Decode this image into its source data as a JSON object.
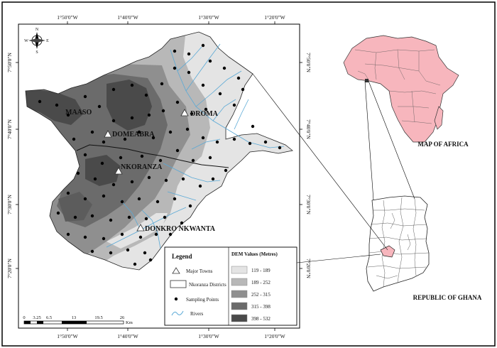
{
  "towns": {
    "maaso": "MAASO",
    "droma": "DROMA",
    "domeabra": "DOMEABRA",
    "nkoranza": "NKORANZA",
    "donkro": "DONKRO NKWANTA"
  },
  "top_ticks": [
    "1°50'0\"W",
    "1°40'0\"W",
    "1°30'0\"W",
    "1°20'0\"W"
  ],
  "bottom_ticks": [
    "1°50'0\"W",
    "1°40'0\"W",
    "1°30'0\"W",
    "1°20'0\"W"
  ],
  "left_ticks": [
    "7°50'0\"N",
    "7°40'0\"N",
    "7°30'0\"N",
    "7°20'0\"N"
  ],
  "right_ticks": [
    "7°50'0\"N",
    "7°40'0\"N",
    "7°30'0\"N",
    "7°20'0\"N"
  ],
  "compass": {
    "n": "N",
    "s": "S",
    "e": "E",
    "w": "W"
  },
  "scale": {
    "labels": [
      "0",
      "3.25",
      "6.5",
      "13",
      "19.5",
      "26"
    ],
    "unit": "Km"
  },
  "legend": {
    "title": "Legend",
    "items": [
      "Major Towns",
      "Nkoranza Districts",
      "Sampling Points",
      "Rivers"
    ],
    "dem_title": "DEM Values (Metres)",
    "dem_classes": [
      {
        "label": "119 - 189",
        "color": "#e4e4e4"
      },
      {
        "label": "189 - 252",
        "color": "#b8b8b8"
      },
      {
        "label": "252 - 315",
        "color": "#8f8f8f"
      },
      {
        "label": "315 - 398",
        "color": "#6b6b6b"
      },
      {
        "label": "398 - 532",
        "color": "#4a4a4a"
      }
    ]
  },
  "captions": {
    "africa": "MAP OF AFRICA",
    "ghana": "REPUBLIC OF GHANA"
  },
  "colors": {
    "africa_fill": "#f7b6bd",
    "river": "#5aa9d6",
    "ghana_highlight": "#f7b6bd"
  }
}
